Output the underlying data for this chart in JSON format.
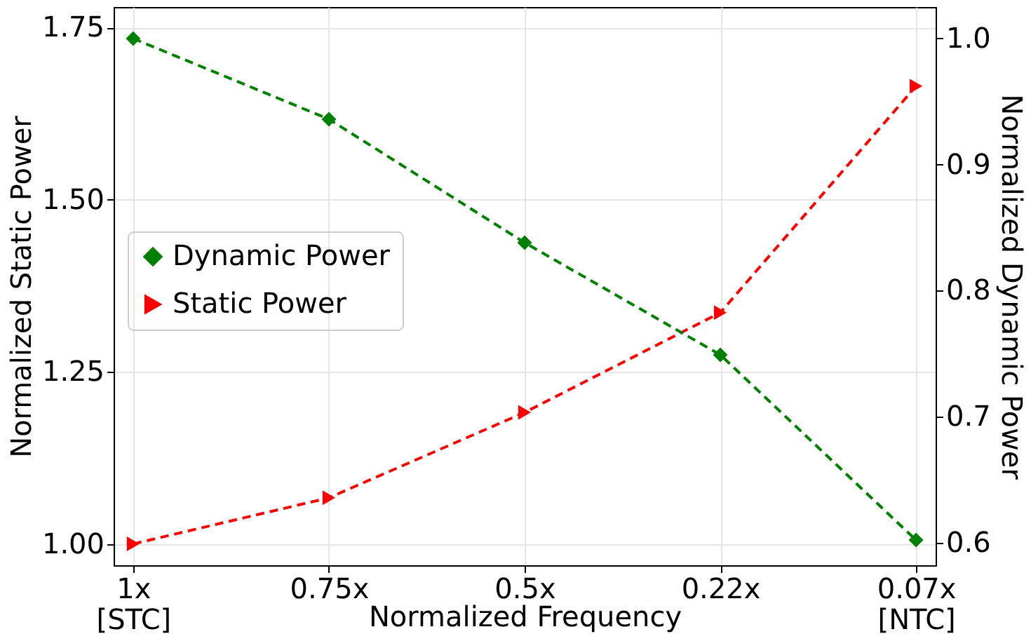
{
  "chart_data": {
    "type": "line",
    "xlabel": "Normalized Frequency",
    "ylabel": "Normalized Static Power",
    "y2label": "Normalized Dynamic Power",
    "categories": [
      "1x\n[STC]",
      "0.75x",
      "0.5x",
      "0.22x",
      "0.07x\n[NTC]"
    ],
    "series": [
      {
        "name": "Dynamic Power",
        "color": "#008000",
        "marker": "diamond",
        "axis": "y2",
        "values": [
          1.0,
          0.936,
          0.838,
          0.749,
          0.602
        ]
      },
      {
        "name": "Static Power",
        "color": "#ff0000",
        "marker": "triangle-right",
        "values": [
          1.0,
          1.067,
          1.191,
          1.336,
          1.665
        ]
      }
    ],
    "ylim": [
      0.969,
      1.78
    ],
    "yticks": [
      {
        "value": 1.0,
        "label": "1.00"
      },
      1.25,
      {
        "value": 1.5,
        "label": "1.50"
      },
      1.75
    ],
    "y2lim": [
      0.582,
      1.025
    ],
    "y2ticks": [
      {
        "value": 0.6,
        "label": "0.6"
      },
      0.7,
      0.8,
      0.9,
      {
        "value": 1.0,
        "label": "1.0"
      }
    ],
    "grid": true,
    "legend": "left",
    "line_style": "dashed"
  }
}
